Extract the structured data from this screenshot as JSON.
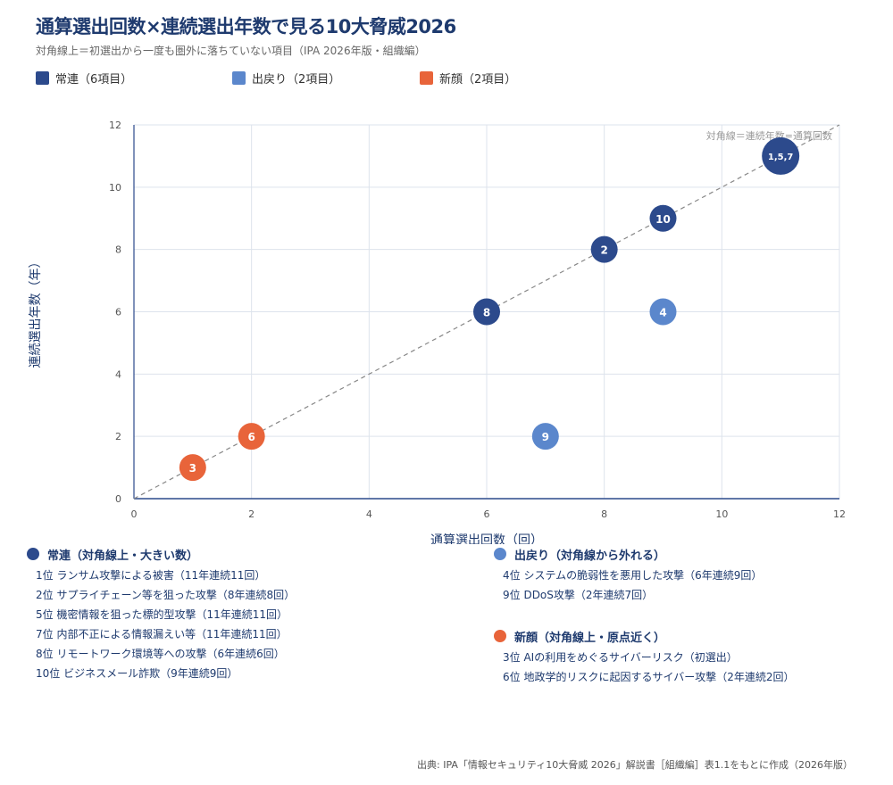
{
  "title": "通算選出回数×連続選出年数で見る10大脅威2026",
  "subtitle": "対角線上＝初選出から一度も圏外に落ちていない項目（IPA 2026年版・組織編）",
  "colors": {
    "joren": "#2c4a8c",
    "modori": "#5b87cc",
    "shingao": "#e8643a",
    "title": "#1e3a6e"
  },
  "legend": [
    {
      "label": "常連（6項目）",
      "color": "#2c4a8c"
    },
    {
      "label": "出戻り（2項目）",
      "color": "#5b87cc"
    },
    {
      "label": "新顔（2項目）",
      "color": "#e8643a"
    }
  ],
  "chart_data": {
    "type": "scatter",
    "xlabel": "通算選出回数（回）",
    "ylabel": "連続選出年数（年）",
    "xlim": [
      0,
      12
    ],
    "ylim": [
      0,
      12
    ],
    "xticks": [
      0,
      2,
      4,
      6,
      8,
      10,
      12
    ],
    "yticks": [
      0,
      2,
      4,
      6,
      8,
      10,
      12
    ],
    "grid": true,
    "diagonal_label": "対角線＝連続年数=通算回数",
    "points": [
      {
        "label": "1,5,7",
        "x": 11,
        "y": 11,
        "group": "joren",
        "count": 3
      },
      {
        "label": "10",
        "x": 9,
        "y": 9,
        "group": "joren",
        "count": 1
      },
      {
        "label": "2",
        "x": 8,
        "y": 8,
        "group": "joren",
        "count": 1
      },
      {
        "label": "8",
        "x": 6,
        "y": 6,
        "group": "joren",
        "count": 1
      },
      {
        "label": "4",
        "x": 9,
        "y": 6,
        "group": "modori",
        "count": 1
      },
      {
        "label": "9",
        "x": 7,
        "y": 2,
        "group": "modori",
        "count": 1
      },
      {
        "label": "6",
        "x": 2,
        "y": 2,
        "group": "shingao",
        "count": 1
      },
      {
        "label": "3",
        "x": 1,
        "y": 1,
        "group": "shingao",
        "count": 1
      }
    ]
  },
  "groups": [
    {
      "title": "常連（対角線上・大きい数）",
      "color": "#2c4a8c",
      "items": [
        "1位 ランサム攻撃による被害（11年連続11回）",
        "2位 サプライチェーン等を狙った攻撃（8年連続8回）",
        "5位 機密情報を狙った標的型攻撃（11年連続11回）",
        "7位 内部不正による情報漏えい等（11年連続11回）",
        "8位 リモートワーク環境等への攻撃（6年連続6回）",
        "10位 ビジネスメール詐欺（9年連続9回）"
      ]
    },
    {
      "title": "出戻り（対角線から外れる）",
      "color": "#5b87cc",
      "items": [
        "4位 システムの脆弱性を悪用した攻撃（6年連続9回）",
        "9位 DDoS攻撃（2年連続7回）"
      ]
    },
    {
      "title": "新顔（対角線上・原点近く）",
      "color": "#e8643a",
      "items": [
        "3位 AIの利用をめぐるサイバーリスク（初選出）",
        "6位 地政学的リスクに起因するサイバー攻撃（2年連続2回）"
      ]
    }
  ],
  "source": "出典: IPA「情報セキュリティ10大脅威 2026」解説書［組織編］表1.1をもとに作成（2026年版）"
}
